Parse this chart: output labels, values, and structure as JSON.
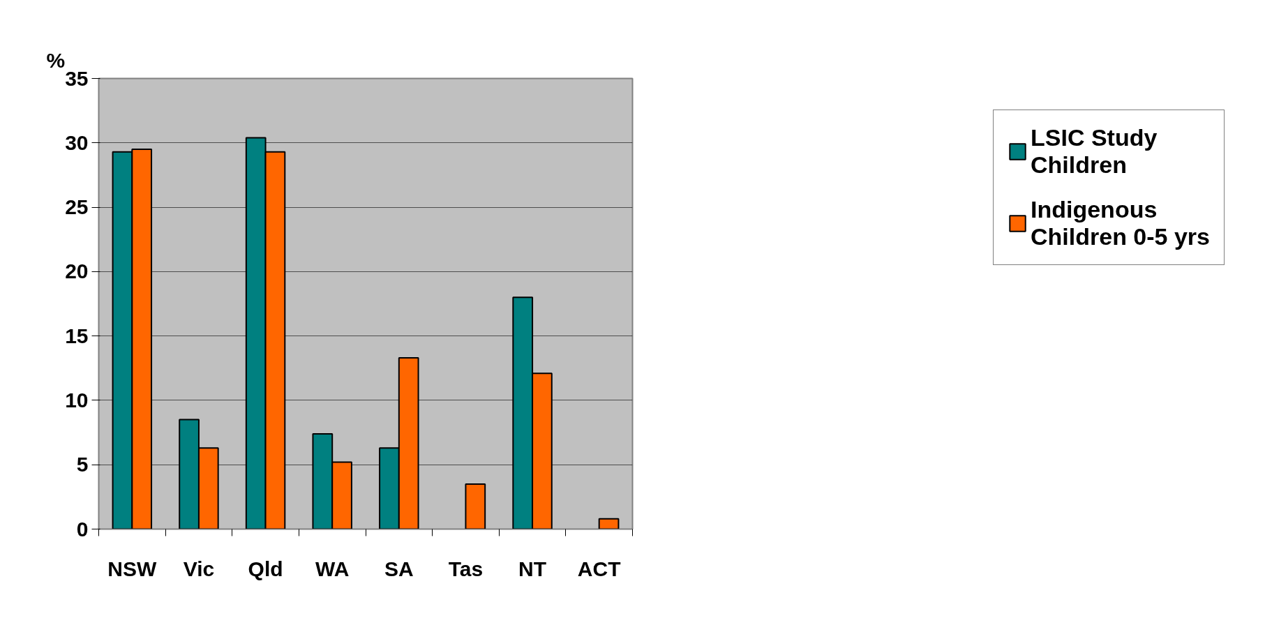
{
  "chart_data": {
    "type": "bar",
    "ylabel": "%",
    "categories": [
      "NSW",
      "Vic",
      "Qld",
      "WA",
      "SA",
      "Tas",
      "NT",
      "ACT"
    ],
    "series": [
      {
        "name": "LSIC Study Children",
        "color": "#008080",
        "values": [
          29.3,
          8.5,
          30.4,
          7.4,
          6.3,
          null,
          18.0,
          null
        ]
      },
      {
        "name": "Indigenous Children 0-5 yrs",
        "color": "#ff6600",
        "values": [
          29.5,
          6.3,
          29.3,
          5.2,
          13.3,
          3.5,
          12.1,
          0.8
        ]
      }
    ],
    "ylim": [
      0,
      35
    ],
    "yticks": [
      0,
      5,
      10,
      15,
      20,
      25,
      30,
      35
    ],
    "grid": "y",
    "legend": "right"
  }
}
